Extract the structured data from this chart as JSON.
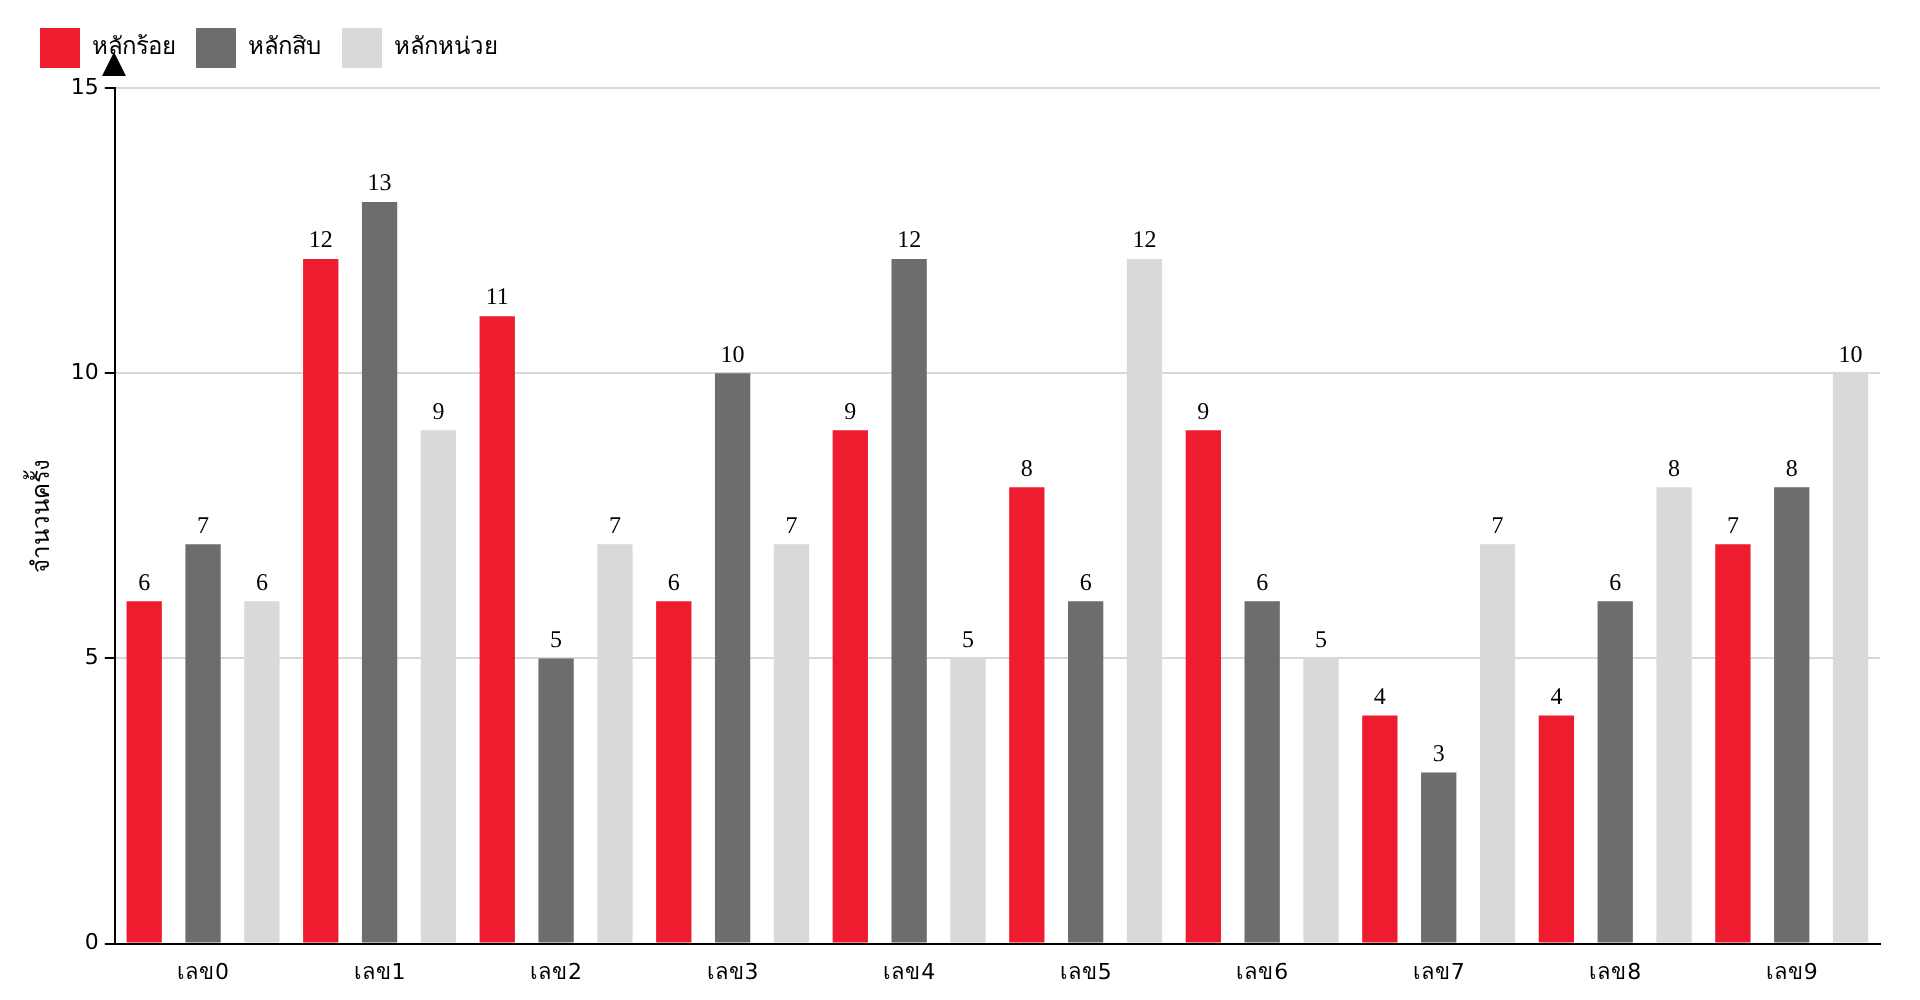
{
  "chart_data": {
    "type": "bar",
    "ylabel": "จำนวนครั้ง",
    "categories": [
      "เลข0",
      "เลข1",
      "เลข2",
      "เลข3",
      "เลข4",
      "เลข5",
      "เลข6",
      "เลข7",
      "เลข8",
      "เลข9"
    ],
    "series": [
      {
        "name": "หลักร้อย",
        "color": "#ed1c2e",
        "values": [
          6,
          12,
          11,
          6,
          9,
          8,
          9,
          4,
          4,
          7
        ]
      },
      {
        "name": "หลักสิบ",
        "color": "#6d6d6d",
        "values": [
          7,
          13,
          5,
          10,
          12,
          6,
          6,
          3,
          6,
          8
        ]
      },
      {
        "name": "หลักหน่วย",
        "color": "#d9d9d9",
        "values": [
          6,
          9,
          7,
          7,
          5,
          12,
          5,
          7,
          8,
          10
        ]
      }
    ],
    "ylim": [
      0,
      15
    ],
    "yticks": [
      0,
      5,
      10,
      15
    ],
    "grid": "y",
    "legend": "top left",
    "data_labels": true
  }
}
